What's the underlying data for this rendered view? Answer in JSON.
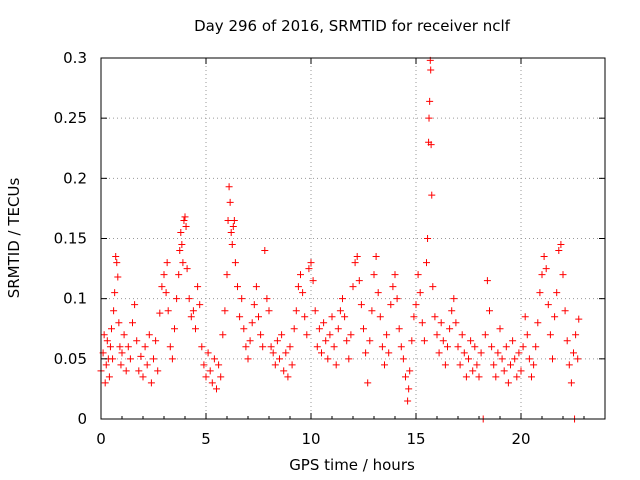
{
  "chart_data": {
    "type": "scatter",
    "title": "Day 296 of 2016, SRMTID for receiver nclf",
    "xlabel": "GPS time / hours",
    "ylabel": "SRMTID / TECUs",
    "xlim": [
      0,
      24
    ],
    "ylim": [
      0,
      0.3
    ],
    "xticks": [
      0,
      5,
      10,
      15,
      20
    ],
    "xtick_labels": [
      "0",
      "5",
      "10",
      "15",
      "20"
    ],
    "yticks": [
      0,
      0.05,
      0.1,
      0.15,
      0.2,
      0.25,
      0.3
    ],
    "ytick_labels": [
      "0",
      "0.05",
      "0.1",
      "0.15",
      "0.2",
      "0.25",
      "0.3"
    ],
    "grid": true,
    "marker": "+",
    "color": "#ff0000",
    "series": [
      {
        "name": "SRMTID",
        "points": [
          [
            0.0,
            0.04
          ],
          [
            0.1,
            0.055
          ],
          [
            0.15,
            0.07
          ],
          [
            0.2,
            0.03
          ],
          [
            0.25,
            0.045
          ],
          [
            0.3,
            0.065
          ],
          [
            0.35,
            0.05
          ],
          [
            0.4,
            0.035
          ],
          [
            0.45,
            0.06
          ],
          [
            0.5,
            0.075
          ],
          [
            0.55,
            0.05
          ],
          [
            0.6,
            0.09
          ],
          [
            0.65,
            0.105
          ],
          [
            0.7,
            0.135
          ],
          [
            0.75,
            0.13
          ],
          [
            0.8,
            0.118
          ],
          [
            0.85,
            0.08
          ],
          [
            0.9,
            0.06
          ],
          [
            0.95,
            0.045
          ],
          [
            1.0,
            0.055
          ],
          [
            1.1,
            0.07
          ],
          [
            1.2,
            0.04
          ],
          [
            1.3,
            0.06
          ],
          [
            1.4,
            0.05
          ],
          [
            1.5,
            0.08
          ],
          [
            1.6,
            0.095
          ],
          [
            1.7,
            0.065
          ],
          [
            1.8,
            0.04
          ],
          [
            1.9,
            0.052
          ],
          [
            2.0,
            0.035
          ],
          [
            2.1,
            0.06
          ],
          [
            2.2,
            0.045
          ],
          [
            2.3,
            0.07
          ],
          [
            2.4,
            0.03
          ],
          [
            2.5,
            0.05
          ],
          [
            2.6,
            0.065
          ],
          [
            2.7,
            0.04
          ],
          [
            2.8,
            0.088
          ],
          [
            2.9,
            0.11
          ],
          [
            3.0,
            0.12
          ],
          [
            3.1,
            0.105
          ],
          [
            3.15,
            0.13
          ],
          [
            3.2,
            0.09
          ],
          [
            3.3,
            0.06
          ],
          [
            3.4,
            0.05
          ],
          [
            3.5,
            0.075
          ],
          [
            3.6,
            0.1
          ],
          [
            3.7,
            0.12
          ],
          [
            3.75,
            0.14
          ],
          [
            3.8,
            0.155
          ],
          [
            3.85,
            0.145
          ],
          [
            3.9,
            0.13
          ],
          [
            3.95,
            0.165
          ],
          [
            4.0,
            0.168
          ],
          [
            4.05,
            0.16
          ],
          [
            4.1,
            0.125
          ],
          [
            4.2,
            0.1
          ],
          [
            4.3,
            0.085
          ],
          [
            4.4,
            0.09
          ],
          [
            4.5,
            0.075
          ],
          [
            4.6,
            0.11
          ],
          [
            4.7,
            0.095
          ],
          [
            4.8,
            0.06
          ],
          [
            4.9,
            0.045
          ],
          [
            5.0,
            0.035
          ],
          [
            5.1,
            0.055
          ],
          [
            5.2,
            0.04
          ],
          [
            5.3,
            0.03
          ],
          [
            5.4,
            0.05
          ],
          [
            5.5,
            0.025
          ],
          [
            5.6,
            0.045
          ],
          [
            5.7,
            0.035
          ],
          [
            5.8,
            0.07
          ],
          [
            5.9,
            0.09
          ],
          [
            6.0,
            0.12
          ],
          [
            6.05,
            0.165
          ],
          [
            6.1,
            0.193
          ],
          [
            6.15,
            0.18
          ],
          [
            6.2,
            0.155
          ],
          [
            6.25,
            0.145
          ],
          [
            6.3,
            0.16
          ],
          [
            6.35,
            0.165
          ],
          [
            6.4,
            0.13
          ],
          [
            6.5,
            0.11
          ],
          [
            6.6,
            0.085
          ],
          [
            6.7,
            0.1
          ],
          [
            6.8,
            0.075
          ],
          [
            6.9,
            0.06
          ],
          [
            7.0,
            0.05
          ],
          [
            7.1,
            0.065
          ],
          [
            7.2,
            0.08
          ],
          [
            7.3,
            0.095
          ],
          [
            7.4,
            0.11
          ],
          [
            7.5,
            0.085
          ],
          [
            7.6,
            0.07
          ],
          [
            7.7,
            0.06
          ],
          [
            7.8,
            0.14
          ],
          [
            7.9,
            0.1
          ],
          [
            8.0,
            0.09
          ],
          [
            8.1,
            0.06
          ],
          [
            8.2,
            0.055
          ],
          [
            8.3,
            0.045
          ],
          [
            8.4,
            0.065
          ],
          [
            8.5,
            0.05
          ],
          [
            8.6,
            0.07
          ],
          [
            8.7,
            0.04
          ],
          [
            8.8,
            0.055
          ],
          [
            8.9,
            0.035
          ],
          [
            9.0,
            0.06
          ],
          [
            9.1,
            0.045
          ],
          [
            9.2,
            0.075
          ],
          [
            9.3,
            0.09
          ],
          [
            9.4,
            0.11
          ],
          [
            9.5,
            0.12
          ],
          [
            9.6,
            0.105
          ],
          [
            9.7,
            0.085
          ],
          [
            9.8,
            0.07
          ],
          [
            9.9,
            0.125
          ],
          [
            10.0,
            0.13
          ],
          [
            10.1,
            0.115
          ],
          [
            10.2,
            0.09
          ],
          [
            10.3,
            0.06
          ],
          [
            10.4,
            0.075
          ],
          [
            10.5,
            0.055
          ],
          [
            10.6,
            0.08
          ],
          [
            10.7,
            0.065
          ],
          [
            10.8,
            0.05
          ],
          [
            10.9,
            0.07
          ],
          [
            11.0,
            0.085
          ],
          [
            11.1,
            0.06
          ],
          [
            11.2,
            0.045
          ],
          [
            11.3,
            0.075
          ],
          [
            11.4,
            0.09
          ],
          [
            11.5,
            0.1
          ],
          [
            11.6,
            0.085
          ],
          [
            11.7,
            0.065
          ],
          [
            11.8,
            0.05
          ],
          [
            11.9,
            0.07
          ],
          [
            12.0,
            0.11
          ],
          [
            12.1,
            0.13
          ],
          [
            12.2,
            0.135
          ],
          [
            12.3,
            0.115
          ],
          [
            12.4,
            0.095
          ],
          [
            12.5,
            0.075
          ],
          [
            12.6,
            0.055
          ],
          [
            12.7,
            0.03
          ],
          [
            12.8,
            0.065
          ],
          [
            12.9,
            0.09
          ],
          [
            13.0,
            0.12
          ],
          [
            13.1,
            0.135
          ],
          [
            13.2,
            0.105
          ],
          [
            13.3,
            0.085
          ],
          [
            13.4,
            0.06
          ],
          [
            13.5,
            0.045
          ],
          [
            13.6,
            0.07
          ],
          [
            13.7,
            0.055
          ],
          [
            13.8,
            0.095
          ],
          [
            13.9,
            0.11
          ],
          [
            14.0,
            0.12
          ],
          [
            14.1,
            0.1
          ],
          [
            14.2,
            0.075
          ],
          [
            14.3,
            0.06
          ],
          [
            14.4,
            0.05
          ],
          [
            14.5,
            0.035
          ],
          [
            14.6,
            0.015
          ],
          [
            14.65,
            0.025
          ],
          [
            14.7,
            0.04
          ],
          [
            14.8,
            0.065
          ],
          [
            14.9,
            0.085
          ],
          [
            15.0,
            0.095
          ],
          [
            15.1,
            0.12
          ],
          [
            15.2,
            0.105
          ],
          [
            15.3,
            0.08
          ],
          [
            15.4,
            0.065
          ],
          [
            15.5,
            0.13
          ],
          [
            15.55,
            0.15
          ],
          [
            15.6,
            0.23
          ],
          [
            15.62,
            0.25
          ],
          [
            15.65,
            0.264
          ],
          [
            15.68,
            0.298
          ],
          [
            15.7,
            0.29
          ],
          [
            15.72,
            0.228
          ],
          [
            15.75,
            0.186
          ],
          [
            15.8,
            0.11
          ],
          [
            15.9,
            0.085
          ],
          [
            16.0,
            0.07
          ],
          [
            16.1,
            0.055
          ],
          [
            16.2,
            0.08
          ],
          [
            16.3,
            0.065
          ],
          [
            16.4,
            0.045
          ],
          [
            16.5,
            0.06
          ],
          [
            16.6,
            0.075
          ],
          [
            16.7,
            0.09
          ],
          [
            16.8,
            0.1
          ],
          [
            16.9,
            0.08
          ],
          [
            17.0,
            0.06
          ],
          [
            17.1,
            0.045
          ],
          [
            17.2,
            0.07
          ],
          [
            17.3,
            0.055
          ],
          [
            17.4,
            0.035
          ],
          [
            17.5,
            0.05
          ],
          [
            17.6,
            0.065
          ],
          [
            17.7,
            0.04
          ],
          [
            17.8,
            0.06
          ],
          [
            17.9,
            0.045
          ],
          [
            18.0,
            0.035
          ],
          [
            18.1,
            0.055
          ],
          [
            18.2,
            0.0
          ],
          [
            18.3,
            0.07
          ],
          [
            18.4,
            0.115
          ],
          [
            18.5,
            0.09
          ],
          [
            18.6,
            0.06
          ],
          [
            18.7,
            0.045
          ],
          [
            18.8,
            0.035
          ],
          [
            18.9,
            0.055
          ],
          [
            19.0,
            0.075
          ],
          [
            19.1,
            0.05
          ],
          [
            19.2,
            0.04
          ],
          [
            19.3,
            0.06
          ],
          [
            19.4,
            0.03
          ],
          [
            19.5,
            0.045
          ],
          [
            19.6,
            0.065
          ],
          [
            19.7,
            0.05
          ],
          [
            19.8,
            0.035
          ],
          [
            19.9,
            0.055
          ],
          [
            20.0,
            0.04
          ],
          [
            20.1,
            0.06
          ],
          [
            20.2,
            0.085
          ],
          [
            20.3,
            0.07
          ],
          [
            20.4,
            0.05
          ],
          [
            20.5,
            0.035
          ],
          [
            20.6,
            0.045
          ],
          [
            20.7,
            0.06
          ],
          [
            20.8,
            0.08
          ],
          [
            20.9,
            0.105
          ],
          [
            21.0,
            0.12
          ],
          [
            21.1,
            0.135
          ],
          [
            21.2,
            0.125
          ],
          [
            21.3,
            0.095
          ],
          [
            21.4,
            0.07
          ],
          [
            21.5,
            0.05
          ],
          [
            21.6,
            0.085
          ],
          [
            21.7,
            0.105
          ],
          [
            21.8,
            0.14
          ],
          [
            21.9,
            0.145
          ],
          [
            22.0,
            0.12
          ],
          [
            22.1,
            0.09
          ],
          [
            22.2,
            0.065
          ],
          [
            22.3,
            0.045
          ],
          [
            22.4,
            0.03
          ],
          [
            22.5,
            0.055
          ],
          [
            22.55,
            0.0
          ],
          [
            22.6,
            0.07
          ],
          [
            22.7,
            0.05
          ],
          [
            22.75,
            0.083
          ]
        ]
      }
    ]
  }
}
